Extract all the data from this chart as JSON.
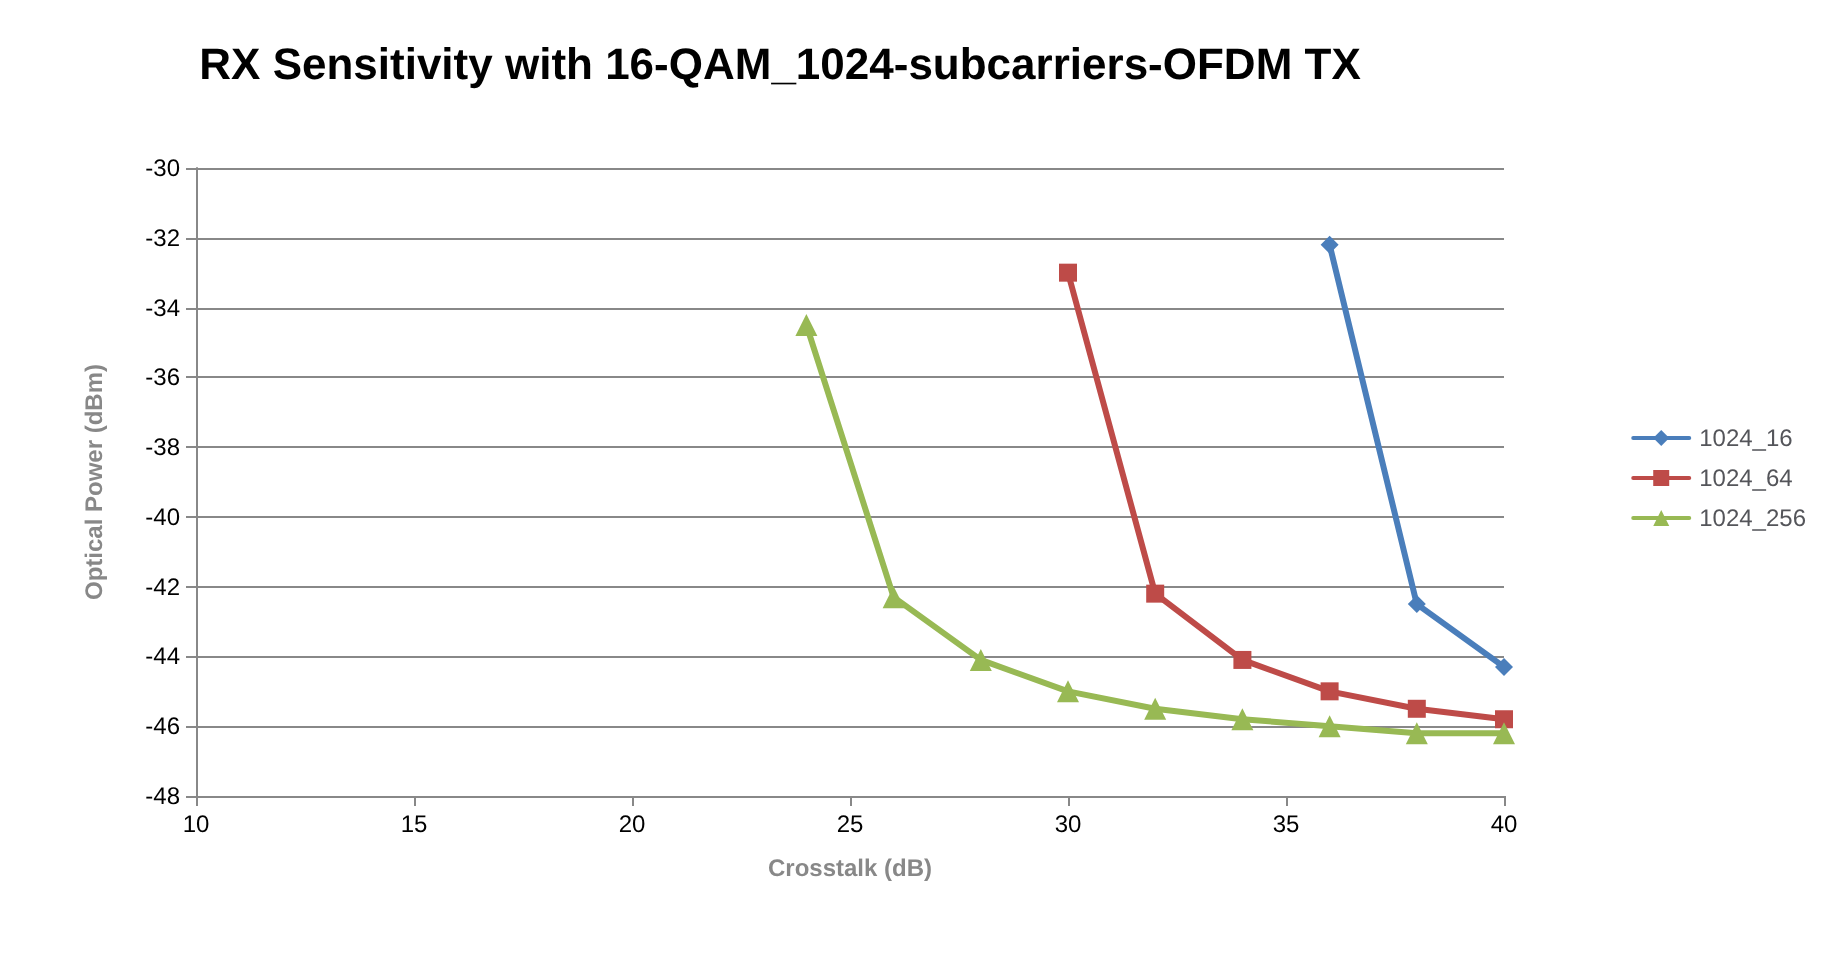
{
  "chart_data": {
    "type": "line",
    "title": "RX Sensitivity with 16-QAM_1024-subcarriers-OFDM TX",
    "xlabel": "Crosstalk (dB)",
    "ylabel": "Optical Power (dBm)",
    "xlim": [
      10,
      40
    ],
    "xticks": [
      10,
      15,
      20,
      25,
      30,
      35,
      40
    ],
    "ylim": [
      -48,
      -30
    ],
    "yticks": [
      -48,
      -46,
      -44,
      -42,
      -40,
      -38,
      -36,
      -34,
      -32,
      -30
    ],
    "grid": "y",
    "legend": "right",
    "series": [
      {
        "name": "1024_16",
        "color": "#4a7ebb",
        "marker": "diamond",
        "x": [
          36,
          38,
          40
        ],
        "values": [
          -32.2,
          -42.5,
          -44.3
        ]
      },
      {
        "name": "1024_64",
        "color": "#be4b48",
        "marker": "square",
        "x": [
          30,
          32,
          34,
          36,
          38,
          40
        ],
        "values": [
          -33.0,
          -42.2,
          -44.1,
          -45.0,
          -45.5,
          -45.8
        ]
      },
      {
        "name": "1024_256",
        "color": "#98b954",
        "marker": "triangle",
        "x": [
          24,
          26,
          28,
          30,
          32,
          34,
          36,
          38,
          40
        ],
        "values": [
          -34.5,
          -42.3,
          -44.1,
          -45.0,
          -45.5,
          -45.8,
          -46.0,
          -46.2,
          -46.2
        ]
      }
    ]
  }
}
